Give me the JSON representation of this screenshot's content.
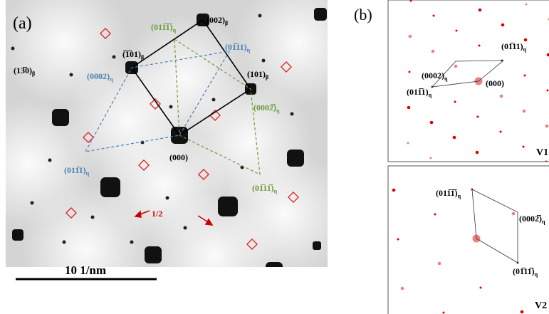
{
  "panel_a": {
    "label": "(a)",
    "scale_bar": "10  1/nm",
    "annotation": "1/2",
    "beta_labels": [
      {
        "text": "(002)",
        "sub": "β"
      },
      {
        "text": "(̅1̅01)",
        "sub": "β"
      },
      {
        "text": "(13̅0)",
        "sub": "β"
      },
      {
        "text": "(101)",
        "sub": "β"
      },
      {
        "text": "(000)"
      }
    ],
    "blue_labels": [
      {
        "text": "(0002)",
        "sub": "η"
      },
      {
        "text": "(01̅11)",
        "sub": "η"
      },
      {
        "text": "(011̅1)",
        "sub": "η"
      }
    ],
    "green_labels": [
      {
        "text": "(011̅1̅)",
        "sub": "η"
      },
      {
        "text": "(0002̅)",
        "sub": "η"
      },
      {
        "text": "(01̅11̅)",
        "sub": "η"
      }
    ]
  },
  "panel_b": {
    "label": "(b)",
    "v1": {
      "name": "V1",
      "labels": [
        {
          "text": "(0002)",
          "sub": "η"
        },
        {
          "text": "(01̅11)",
          "sub": "η"
        },
        {
          "text": "(011̅1)",
          "sub": "η"
        },
        {
          "text": "(000)"
        }
      ]
    },
    "v2": {
      "name": "V2",
      "labels": [
        {
          "text": "(011̅1̅)",
          "sub": "η"
        },
        {
          "text": "(0002̅)",
          "sub": "η"
        },
        {
          "text": "(01̅11̅)",
          "sub": "η"
        }
      ]
    }
  }
}
